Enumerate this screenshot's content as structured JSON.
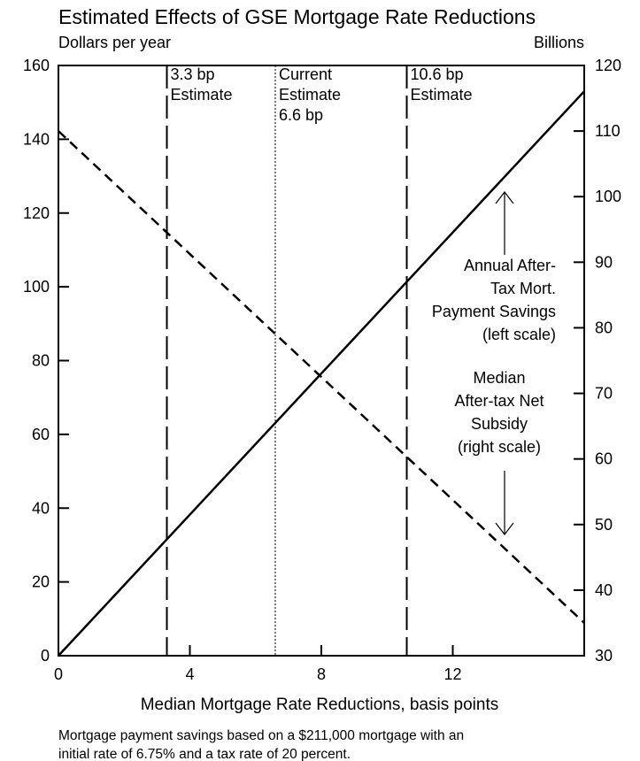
{
  "chart_data": {
    "type": "line",
    "title": "Estimated Effects of GSE Mortgage Rate Reductions",
    "left_unit": "Dollars per year",
    "right_unit": "Billions",
    "xlabel": "Median Mortgage Rate Reductions, basis points",
    "xlim": [
      0,
      16
    ],
    "ylim_left": [
      0,
      160
    ],
    "ylim_right": [
      30,
      120
    ],
    "x_ticks": [
      "0",
      "4",
      "8",
      "12"
    ],
    "x_tick_values": [
      0,
      4,
      8,
      12
    ],
    "left_ticks": [
      "0",
      "20",
      "40",
      "60",
      "80",
      "100",
      "120",
      "140",
      "160"
    ],
    "left_tick_values": [
      0,
      20,
      40,
      60,
      80,
      100,
      120,
      140,
      160
    ],
    "right_ticks": [
      "30",
      "40",
      "50",
      "60",
      "70",
      "80",
      "90",
      "100",
      "110",
      "120"
    ],
    "right_tick_values": [
      30,
      40,
      50,
      60,
      70,
      80,
      90,
      100,
      110,
      120
    ],
    "series": [
      {
        "label": [
          "Annual After-",
          "Tax Mort.",
          "Payment Savings",
          "(left scale)"
        ],
        "axis": "left",
        "style": "solid",
        "x": [
          0,
          16
        ],
        "y": [
          0,
          153
        ]
      },
      {
        "label": [
          "Median",
          "After-tax Net",
          "Subsidy",
          "(right scale)"
        ],
        "axis": "right",
        "style": "dashed",
        "x": [
          0,
          16
        ],
        "y": [
          110,
          35
        ]
      }
    ],
    "reference_lines": [
      {
        "x": 3.3,
        "style": "longdash",
        "label": [
          "3.3 bp",
          "Estimate"
        ]
      },
      {
        "x": 6.6,
        "style": "dotted",
        "label": [
          "Current",
          "Estimate",
          "6.6 bp"
        ]
      },
      {
        "x": 10.6,
        "style": "longdash",
        "label": [
          "10.6 bp",
          "Estimate"
        ]
      }
    ],
    "note": [
      "Mortgage payment savings based on a $211,000 mortgage with an",
      "initial rate of 6.75% and a tax rate of 20 percent."
    ]
  }
}
